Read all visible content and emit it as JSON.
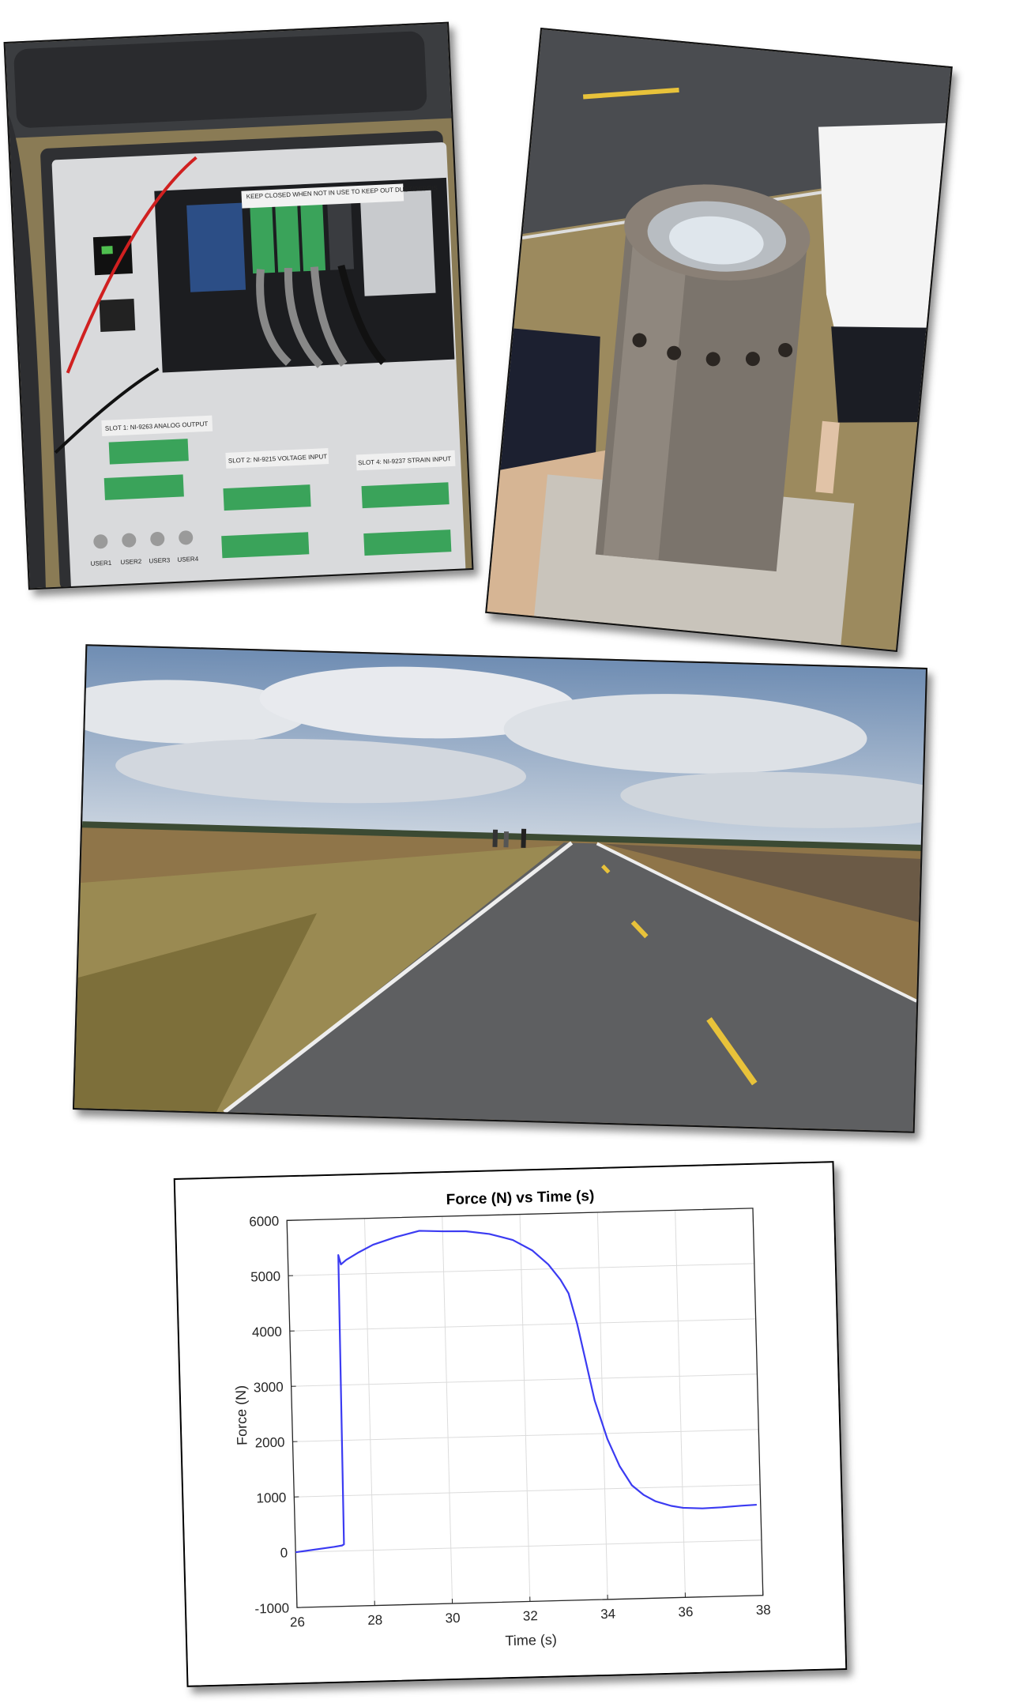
{
  "photos": {
    "daq_labels": {
      "lid_note": "KEEP CLOSED WHEN NOT IN USE TO KEEP OUT DUST/DEBRIS",
      "slot1": "SLOT 1: NI-9263 ANALOG OUTPUT",
      "slot2": "SLOT 2: NI-9215 VOLTAGE INPUT",
      "slot4": "SLOT 4: NI-9237 STRAIN INPUT",
      "user1": "USER1",
      "user2": "USER2",
      "user3": "USER3",
      "user4": "USER4"
    }
  },
  "chart_data": {
    "type": "line",
    "title": "Force (N) vs Time (s)",
    "xlabel": "Time (s)",
    "ylabel": "Force (N)",
    "xlim": [
      26,
      38
    ],
    "ylim": [
      -1000,
      6000
    ],
    "xticks": [
      26,
      28,
      30,
      32,
      34,
      36,
      38
    ],
    "yticks": [
      -1000,
      0,
      1000,
      2000,
      3000,
      4000,
      5000,
      6000
    ],
    "grid": true,
    "line_color": "#3b3bf2",
    "series": [
      {
        "x": [
          26.0,
          27.0,
          27.2,
          27.25,
          27.3,
          27.36,
          27.5,
          27.8,
          28.2,
          28.8,
          29.4,
          30.0,
          30.6,
          31.2,
          31.8,
          32.3,
          32.7,
          33.0,
          33.2,
          33.4,
          33.6,
          33.8,
          34.1,
          34.4,
          34.7,
          35.0,
          35.3,
          35.7,
          36.0,
          36.5,
          37.0,
          37.5,
          37.9
        ],
        "y": [
          0,
          80,
          100,
          120,
          5350,
          5180,
          5260,
          5380,
          5520,
          5650,
          5750,
          5730,
          5720,
          5660,
          5540,
          5340,
          5080,
          4800,
          4550,
          4000,
          3300,
          2600,
          1900,
          1400,
          1050,
          870,
          750,
          660,
          620,
          600,
          610,
          630,
          640
        ]
      }
    ]
  }
}
